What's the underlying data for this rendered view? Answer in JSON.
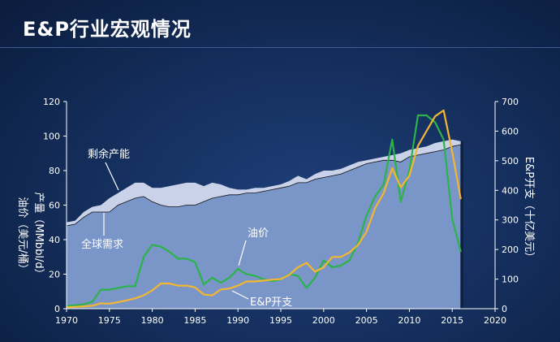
{
  "title": "E&P行业宏观情况",
  "chart_data": {
    "type": "area",
    "x_ticks": [
      1970,
      1975,
      1980,
      1985,
      1990,
      1995,
      2000,
      2005,
      2010,
      2015,
      2020
    ],
    "xlim": [
      1970,
      2020
    ],
    "left_axis": {
      "label_1": "油价（美元/桶）",
      "label_2": "产量（MMbbl/d）",
      "ylim": [
        0,
        120
      ],
      "ticks": [
        0,
        20,
        40,
        60,
        80,
        100,
        120
      ]
    },
    "right_axis": {
      "label": "E&P开支（十亿美元）",
      "ylim": [
        0,
        700
      ],
      "ticks": [
        0,
        100,
        200,
        300,
        400,
        500,
        600,
        700
      ]
    },
    "series": [
      {
        "name": "剩余产能",
        "axis": "left",
        "color": "#c9d2e8",
        "x": [
          1970,
          1971,
          1972,
          1973,
          1974,
          1975,
          1976,
          1977,
          1978,
          1979,
          1980,
          1981,
          1982,
          1983,
          1984,
          1985,
          1986,
          1987,
          1988,
          1989,
          1990,
          1991,
          1992,
          1993,
          1994,
          1995,
          1996,
          1997,
          1998,
          1999,
          2000,
          2001,
          2002,
          2003,
          2004,
          2005,
          2006,
          2007,
          2008,
          2009,
          2010,
          2011,
          2012,
          2013,
          2014,
          2015,
          2016
        ],
        "values": [
          50,
          51,
          56,
          59,
          60,
          64,
          67,
          70,
          73,
          73,
          70,
          70,
          71,
          72,
          73,
          73,
          71,
          73,
          72,
          70,
          69,
          69,
          70,
          70,
          71,
          72,
          74,
          77,
          75,
          78,
          80,
          80,
          81,
          83,
          85,
          86,
          87,
          88,
          89,
          90,
          92,
          93,
          94,
          96,
          97,
          98,
          97
        ]
      },
      {
        "name": "全球需求",
        "axis": "left",
        "color": "#7a96c8",
        "x": [
          1970,
          1971,
          1972,
          1973,
          1974,
          1975,
          1976,
          1977,
          1978,
          1979,
          1980,
          1981,
          1982,
          1983,
          1984,
          1985,
          1986,
          1987,
          1988,
          1989,
          1990,
          1991,
          1992,
          1993,
          1994,
          1995,
          1996,
          1997,
          1998,
          1999,
          2000,
          2001,
          2002,
          2003,
          2004,
          2005,
          2006,
          2007,
          2008,
          2009,
          2010,
          2011,
          2012,
          2013,
          2014,
          2015,
          2016
        ],
        "values": [
          48,
          49,
          53,
          56,
          56,
          56,
          60,
          62,
          64,
          65,
          62,
          60,
          59,
          59,
          60,
          60,
          62,
          64,
          65,
          66,
          66,
          67,
          67,
          68,
          69,
          70,
          71,
          73,
          73,
          75,
          76,
          77,
          78,
          80,
          82,
          84,
          85,
          86,
          86,
          85,
          88,
          89,
          90,
          91,
          92,
          94,
          95
        ]
      },
      {
        "name": "油价",
        "axis": "left",
        "color": "#2bb34a",
        "x": [
          1970,
          1971,
          1972,
          1973,
          1974,
          1975,
          1976,
          1977,
          1978,
          1979,
          1980,
          1981,
          1982,
          1983,
          1984,
          1985,
          1986,
          1987,
          1988,
          1989,
          1990,
          1991,
          1992,
          1993,
          1994,
          1995,
          1996,
          1997,
          1998,
          1999,
          2000,
          2001,
          2002,
          2003,
          2004,
          2005,
          2006,
          2007,
          2008,
          2009,
          2010,
          2011,
          2012,
          2013,
          2014,
          2015,
          2016
        ],
        "values": [
          1.5,
          2,
          2.5,
          4,
          11,
          11,
          12,
          13,
          13,
          30,
          37,
          36,
          33,
          29,
          29,
          27,
          14,
          18,
          15,
          18,
          23,
          20,
          19,
          17,
          16,
          17,
          20,
          19,
          12,
          18,
          28,
          24,
          25,
          28,
          38,
          54,
          65,
          72,
          98,
          62,
          80,
          112,
          112,
          108,
          98,
          52,
          33
        ]
      },
      {
        "name": "E&P开支",
        "axis": "right",
        "color": "#f2b632",
        "x": [
          1970,
          1971,
          1972,
          1973,
          1974,
          1975,
          1976,
          1977,
          1978,
          1979,
          1980,
          1981,
          1982,
          1983,
          1984,
          1985,
          1986,
          1987,
          1988,
          1989,
          1990,
          1991,
          1992,
          1993,
          1994,
          1995,
          1996,
          1997,
          1998,
          1999,
          2000,
          2001,
          2002,
          2003,
          2004,
          2005,
          2006,
          2007,
          2008,
          2009,
          2010,
          2011,
          2012,
          2013,
          2014,
          2015,
          2016
        ],
        "values": [
          5,
          6,
          8,
          10,
          18,
          17,
          22,
          28,
          35,
          45,
          62,
          85,
          85,
          78,
          78,
          72,
          48,
          45,
          65,
          68,
          78,
          92,
          92,
          95,
          98,
          100,
          115,
          140,
          155,
          125,
          140,
          175,
          175,
          190,
          215,
          260,
          340,
          390,
          475,
          410,
          450,
          550,
          600,
          650,
          670,
          530,
          370
        ]
      }
    ],
    "annotations": [
      {
        "text": "剩余产能"
      },
      {
        "text": "全球需求"
      },
      {
        "text": "油价"
      },
      {
        "text": "E&P开支"
      }
    ]
  }
}
